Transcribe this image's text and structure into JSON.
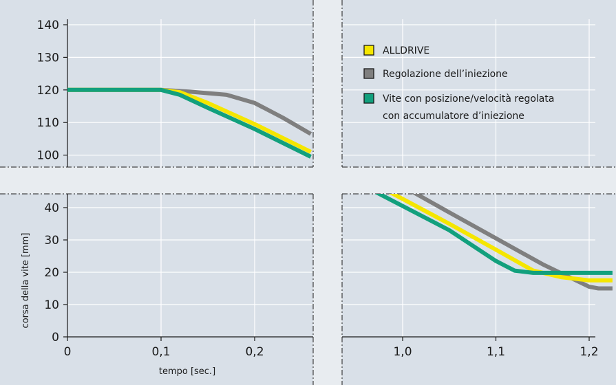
{
  "chart_data": {
    "type": "line",
    "xlabel": "tempo [sec.]",
    "ylabel": "corsa della vite [mm]",
    "x_tick_labels_left": [
      "0",
      "0,1",
      "0,2"
    ],
    "x_tick_labels_right": [
      "1,0",
      "1,1",
      "1,2"
    ],
    "y_tick_labels_upper": [
      "140",
      "130",
      "120",
      "110",
      "100"
    ],
    "y_tick_labels_lower": [
      "40",
      "30",
      "20",
      "10",
      "0"
    ],
    "x_ranges": [
      [
        0,
        0.26
      ],
      [
        0.96,
        1.225
      ]
    ],
    "y_ranges": [
      [
        95,
        143
      ],
      [
        0,
        45
      ]
    ],
    "grid": true,
    "legend_position": "top-right",
    "series": [
      {
        "name": "Regolazione dell’iniezione",
        "color": "#7f7f7f",
        "segments": [
          [
            [
              0,
              120
            ],
            [
              0.1,
              120
            ],
            [
              0.13,
              119.5
            ],
            [
              0.17,
              118.5
            ],
            [
              0.2,
              116
            ],
            [
              0.23,
              111.5
            ],
            [
              0.26,
              106.5
            ]
          ],
          [
            [
              1.01,
              45
            ],
            [
              1.05,
              38.5
            ],
            [
              1.1,
              30.5
            ],
            [
              1.15,
              22.5
            ],
            [
              1.2,
              15.5
            ],
            [
              1.21,
              15
            ],
            [
              1.225,
              15
            ]
          ]
        ]
      },
      {
        "name": "ALLDRIVE",
        "color": "#f5e600",
        "segments": [
          [
            [
              0,
              120
            ],
            [
              0.1,
              120
            ],
            [
              0.12,
              119.3
            ],
            [
              0.15,
              116
            ],
            [
              0.2,
              109.5
            ],
            [
              0.26,
              101
            ]
          ],
          [
            [
              0.985,
              45
            ],
            [
              1.05,
              35
            ],
            [
              1.1,
              27
            ],
            [
              1.14,
              20.5
            ],
            [
              1.17,
              18.5
            ],
            [
              1.2,
              17.5
            ],
            [
              1.225,
              17.5
            ]
          ]
        ]
      },
      {
        "name": "Vite con posizione/velocità regolata con accumulatore d’iniezione",
        "color": "#12a07d",
        "segments": [
          [
            [
              0,
              120
            ],
            [
              0.1,
              120
            ],
            [
              0.12,
              118.5
            ],
            [
              0.15,
              114.5
            ],
            [
              0.2,
              108
            ],
            [
              0.26,
              99.5
            ]
          ],
          [
            [
              0.97,
              45
            ],
            [
              1.05,
              33
            ],
            [
              1.1,
              23.5
            ],
            [
              1.12,
              20.5
            ],
            [
              1.14,
              19.8
            ],
            [
              1.17,
              19.8
            ],
            [
              1.225,
              19.8
            ]
          ]
        ]
      }
    ],
    "legend": [
      {
        "label": "ALLDRIVE",
        "color": "#f5e600"
      },
      {
        "label": "Regolazione dell’iniezione",
        "color": "#7f7f7f"
      },
      {
        "label": "Vite con posizione/velocità regolata",
        "label2": "con accumulatore d’iniezione",
        "color": "#12a07d"
      }
    ]
  }
}
